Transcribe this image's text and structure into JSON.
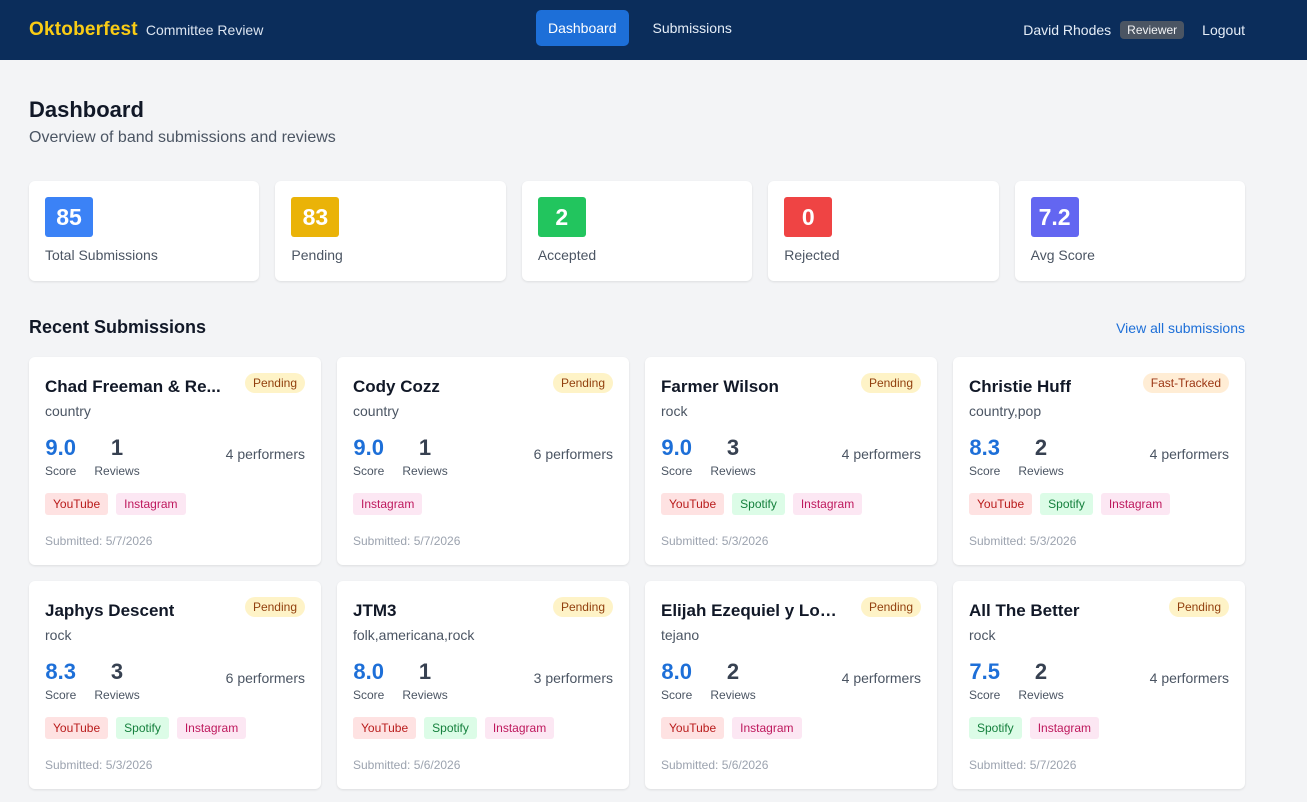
{
  "header": {
    "brand": "Oktoberfest",
    "subtitle": "Committee Review",
    "nav": [
      {
        "label": "Dashboard",
        "active": true
      },
      {
        "label": "Submissions",
        "active": false
      }
    ],
    "user": "David Rhodes",
    "role": "Reviewer",
    "logout": "Logout"
  },
  "page": {
    "title": "Dashboard",
    "subtitle": "Overview of band submissions and reviews"
  },
  "stats": [
    {
      "value": "85",
      "label": "Total Submissions",
      "color": "#3b82f6"
    },
    {
      "value": "83",
      "label": "Pending",
      "color": "#eab308"
    },
    {
      "value": "2",
      "label": "Accepted",
      "color": "#22c55e"
    },
    {
      "value": "0",
      "label": "Rejected",
      "color": "#ef4444"
    },
    {
      "value": "7.2",
      "label": "Avg Score",
      "color": "#6366f1"
    }
  ],
  "recent": {
    "title": "Recent Submissions",
    "view_all": "View all submissions",
    "score_label": "Score",
    "reviews_label": "Reviews",
    "submissions": [
      {
        "name": "Chad Freeman & Re...",
        "status": "Pending",
        "status_type": "pending",
        "genre": "country",
        "score": "9.0",
        "reviews": "1",
        "performers": "4 performers",
        "tags": [
          "YouTube",
          "Instagram"
        ],
        "submitted": "Submitted: 5/7/2026"
      },
      {
        "name": "Cody Cozz",
        "status": "Pending",
        "status_type": "pending",
        "genre": "country",
        "score": "9.0",
        "reviews": "1",
        "performers": "6 performers",
        "tags": [
          "Instagram"
        ],
        "submitted": "Submitted: 5/7/2026"
      },
      {
        "name": "Farmer Wilson",
        "status": "Pending",
        "status_type": "pending",
        "genre": "rock",
        "score": "9.0",
        "reviews": "3",
        "performers": "4 performers",
        "tags": [
          "YouTube",
          "Spotify",
          "Instagram"
        ],
        "submitted": "Submitted: 5/3/2026"
      },
      {
        "name": "Christie Huff",
        "status": "Fast-Tracked",
        "status_type": "fast",
        "genre": "country,pop",
        "score": "8.3",
        "reviews": "2",
        "performers": "4 performers",
        "tags": [
          "YouTube",
          "Spotify",
          "Instagram"
        ],
        "submitted": "Submitted: 5/3/2026"
      },
      {
        "name": "Japhys Descent",
        "status": "Pending",
        "status_type": "pending",
        "genre": "rock",
        "score": "8.3",
        "reviews": "3",
        "performers": "6 performers",
        "tags": [
          "YouTube",
          "Spotify",
          "Instagram"
        ],
        "submitted": "Submitted: 5/3/2026"
      },
      {
        "name": "JTM3",
        "status": "Pending",
        "status_type": "pending",
        "genre": "folk,americana,rock",
        "score": "8.0",
        "reviews": "1",
        "performers": "3 performers",
        "tags": [
          "YouTube",
          "Spotify",
          "Instagram"
        ],
        "submitted": "Submitted: 5/6/2026"
      },
      {
        "name": "Elijah Ezequiel y Los ...",
        "status": "Pending",
        "status_type": "pending",
        "genre": "tejano",
        "score": "8.0",
        "reviews": "2",
        "performers": "4 performers",
        "tags": [
          "YouTube",
          "Instagram"
        ],
        "submitted": "Submitted: 5/6/2026"
      },
      {
        "name": "All The Better",
        "status": "Pending",
        "status_type": "pending",
        "genre": "rock",
        "score": "7.5",
        "reviews": "2",
        "performers": "4 performers",
        "tags": [
          "Spotify",
          "Instagram"
        ],
        "submitted": "Submitted: 5/7/2026"
      }
    ]
  }
}
